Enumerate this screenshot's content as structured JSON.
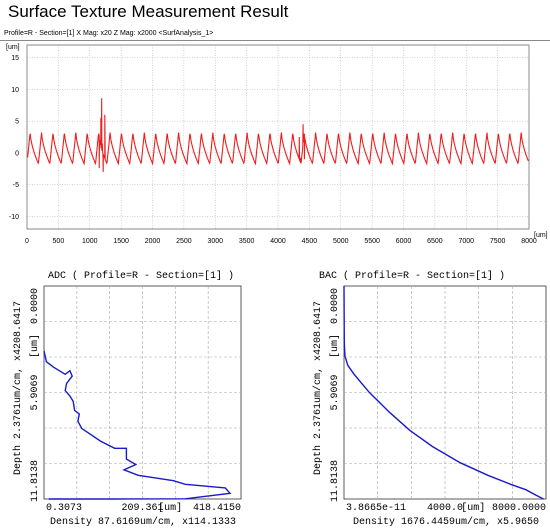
{
  "header": {
    "title": "Surface Texture Measurement Result",
    "subtitle": "Profile=R - Section=[1]   X Mag: x20  Z Mag: x2000 <SurfAnalysis_1>"
  },
  "colors": {
    "profile": "#ee1c1c",
    "adc": "#1a1acc",
    "bac": "#1a1acc",
    "grid": "#a8a8a8"
  },
  "chart_data": [
    {
      "type": "line",
      "title": "",
      "ylabel": "[um]",
      "xlabel": "[um]",
      "xlim": [
        0,
        8000
      ],
      "ylim": [
        -12,
        17
      ],
      "xticks": [
        0,
        500,
        1000,
        1500,
        2000,
        2500,
        3000,
        3500,
        4000,
        4500,
        5000,
        5500,
        6000,
        6500,
        7000,
        7500,
        8000
      ],
      "yticks": [
        15,
        10,
        5,
        0,
        -5,
        -10
      ],
      "grid": true,
      "series": [
        {
          "name": "",
          "periodic": {
            "x_start": 0,
            "x_end": 8000,
            "period": 182,
            "peak": 3.3,
            "trough": -1.7
          },
          "spikes": [
            {
              "x": 1125,
              "y": 1.8
            },
            {
              "x": 1150,
              "y": -2.4
            },
            {
              "x": 1178,
              "y": 5.5
            },
            {
              "x": 1190,
              "y": 8.6
            },
            {
              "x": 1200,
              "y": 1.5
            },
            {
              "x": 1215,
              "y": -3.0
            },
            {
              "x": 1240,
              "y": 6.0
            },
            {
              "x": 4340,
              "y": 2.5
            },
            {
              "x": 4360,
              "y": -0.8
            },
            {
              "x": 4400,
              "y": 4.5
            },
            {
              "x": 4420,
              "y": -1.0
            }
          ]
        }
      ]
    },
    {
      "type": "line",
      "title": "ADC ( Profile=R - Section=[1] )",
      "xlabel": "Density 87.6169um/cm, x114.1333",
      "ylabel": "Depth 2.3761um/cm, x4208.6417",
      "xtick_labels": [
        "0.3073",
        "209.361",
        "[um]",
        "418.4150"
      ],
      "ytick_labels": [
        "0.0000",
        "[um]",
        "5.9069",
        "11.8138"
      ],
      "xlim": [
        0,
        418.415
      ],
      "ylim": [
        0,
        11.8138
      ],
      "grid": true,
      "series": [
        {
          "name": "",
          "points": [
            [
              0,
              3.6
            ],
            [
              5,
              4.2
            ],
            [
              20,
              4.5
            ],
            [
              45,
              4.9
            ],
            [
              55,
              4.7
            ],
            [
              60,
              5.0
            ],
            [
              48,
              5.4
            ],
            [
              45,
              5.8
            ],
            [
              55,
              6.1
            ],
            [
              62,
              6.4
            ],
            [
              65,
              6.9
            ],
            [
              75,
              7.1
            ],
            [
              72,
              7.5
            ],
            [
              80,
              7.9
            ],
            [
              120,
              8.6
            ],
            [
              150,
              9.0
            ],
            [
              175,
              9.0
            ],
            [
              175,
              9.6
            ],
            [
              195,
              9.9
            ],
            [
              170,
              10.2
            ],
            [
              200,
              10.5
            ],
            [
              275,
              10.8
            ],
            [
              300,
              11.0
            ],
            [
              385,
              11.2
            ],
            [
              395,
              11.5
            ],
            [
              300,
              11.8
            ],
            [
              150,
              12.0
            ],
            [
              10,
              12.1
            ]
          ]
        }
      ]
    },
    {
      "type": "line",
      "title": "BAC ( Profile=R - Section=[1] )",
      "xlabel": "Density 1676.4459um/cm, x5.9650",
      "ylabel": "Depth 2.3761um/cm, x4208.6417",
      "xtick_labels": [
        "3.8665e-11",
        "4000.0",
        "[um]",
        "8000.0000"
      ],
      "ytick_labels": [
        "0.0000",
        "[um]",
        "5.9069",
        "11.8138"
      ],
      "xlim": [
        0,
        8000
      ],
      "ylim": [
        0,
        11.8138
      ],
      "grid": true,
      "series": [
        {
          "name": "",
          "points": [
            [
              0,
              0
            ],
            [
              10,
              3.2
            ],
            [
              40,
              3.9
            ],
            [
              150,
              4.4
            ],
            [
              400,
              4.9
            ],
            [
              1000,
              5.9
            ],
            [
              1800,
              7.0
            ],
            [
              2600,
              8.0
            ],
            [
              3500,
              8.9
            ],
            [
              4600,
              9.8
            ],
            [
              5700,
              10.5
            ],
            [
              6600,
              11.0
            ],
            [
              7200,
              11.3
            ],
            [
              7600,
              11.6
            ],
            [
              7900,
              12.0
            ]
          ]
        }
      ]
    }
  ]
}
